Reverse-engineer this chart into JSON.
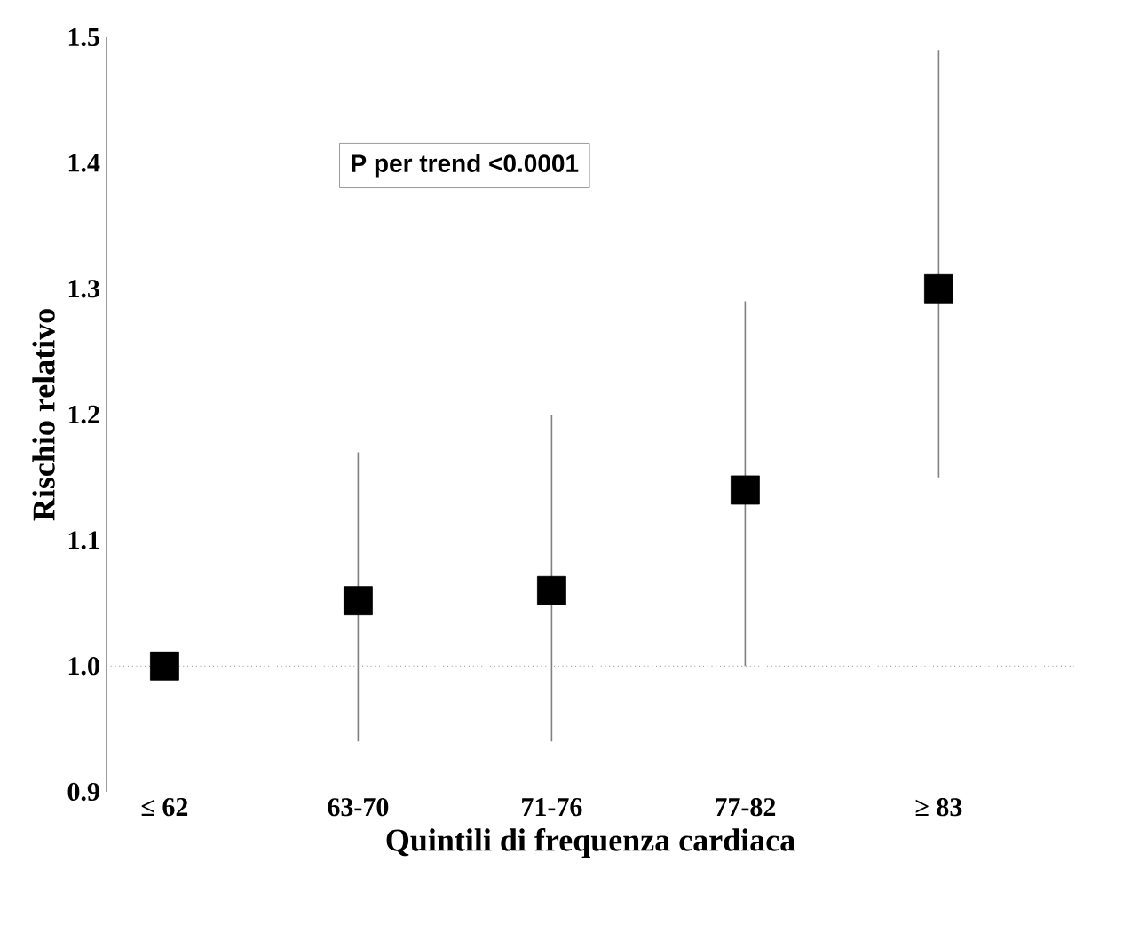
{
  "chart_data": {
    "type": "scatter",
    "xlabel": "Quintili di frequenza cardiaca",
    "ylabel": "Rischio relativo",
    "categories": [
      "≤ 62",
      "63-70",
      "71-76",
      "77-82",
      "≥ 83"
    ],
    "series": [
      {
        "color": "#000000",
        "values": [
          1.0,
          1.052,
          1.06,
          1.14,
          1.3
        ],
        "errors": [
          null,
          [
            0.94,
            1.17
          ],
          [
            0.94,
            1.2
          ],
          [
            1.0,
            1.29
          ],
          [
            1.15,
            1.49
          ]
        ]
      }
    ],
    "ylim": [
      0.9,
      1.5
    ],
    "yticks": [
      0.9,
      {
        "value": 1.0,
        "label": "1.0"
      },
      1.1,
      1.2,
      1.3,
      1.4,
      1.5
    ],
    "marker": "square",
    "grid": false,
    "ref_lines": [
      {
        "axis": "y",
        "value": 1.0,
        "line_style": "dotted",
        "color": "#555555"
      }
    ],
    "annotations": [
      "P per trend <0.0001"
    ]
  }
}
